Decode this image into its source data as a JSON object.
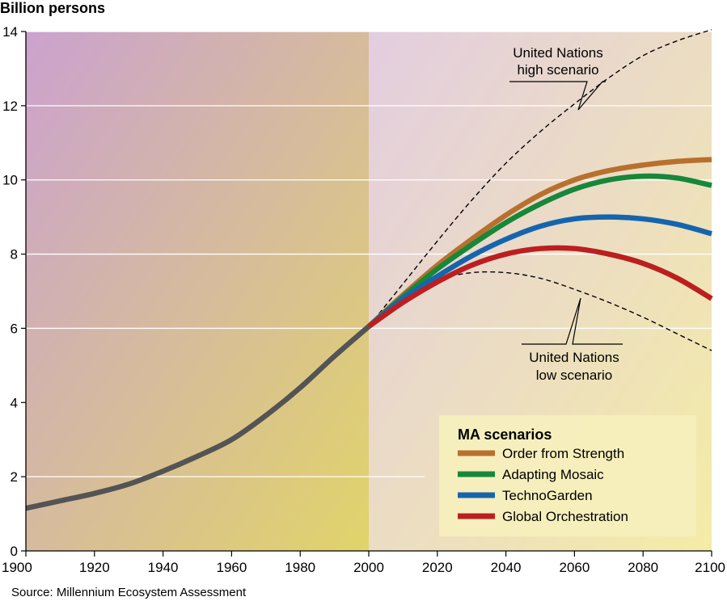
{
  "chart_data": {
    "type": "line",
    "ylabel": "Billion persons",
    "source": "Source: Millennium Ecosystem Assessment",
    "xlim": [
      1900,
      2100
    ],
    "ylim": [
      0,
      14
    ],
    "x_ticks": [
      "1900",
      "1920",
      "1940",
      "1960",
      "1980",
      "2000",
      "2020",
      "2040",
      "2060",
      "2080",
      "2100"
    ],
    "y_ticks": [
      "0",
      "2",
      "4",
      "6",
      "8",
      "10",
      "12",
      "14"
    ],
    "grid": "horizontal",
    "history": {
      "x": [
        1900,
        1910,
        1920,
        1930,
        1940,
        1950,
        1960,
        1970,
        1980,
        1990,
        2000
      ],
      "y": [
        1.15,
        1.35,
        1.55,
        1.8,
        2.15,
        2.55,
        3.0,
        3.65,
        4.4,
        5.25,
        6.05
      ]
    },
    "series": [
      {
        "name": "Order from Strength",
        "color": "#b8702e",
        "x": [
          2000,
          2010,
          2020,
          2030,
          2040,
          2050,
          2060,
          2070,
          2080,
          2090,
          2100
        ],
        "y": [
          6.05,
          6.9,
          7.7,
          8.4,
          9.05,
          9.6,
          10.0,
          10.25,
          10.4,
          10.5,
          10.55
        ]
      },
      {
        "name": "Adapting Mosaic",
        "color": "#17873a",
        "x": [
          2000,
          2010,
          2020,
          2030,
          2040,
          2050,
          2060,
          2070,
          2080,
          2090,
          2100
        ],
        "y": [
          6.05,
          6.85,
          7.6,
          8.25,
          8.85,
          9.35,
          9.75,
          10.0,
          10.1,
          10.05,
          9.85
        ]
      },
      {
        "name": "TechnoGarden",
        "color": "#1565ad",
        "x": [
          2000,
          2010,
          2020,
          2030,
          2040,
          2050,
          2060,
          2070,
          2080,
          2090,
          2100
        ],
        "y": [
          6.05,
          6.8,
          7.4,
          7.95,
          8.4,
          8.75,
          8.95,
          9.0,
          8.95,
          8.8,
          8.55
        ]
      },
      {
        "name": "Global Orchestration",
        "color": "#bb1f1f",
        "x": [
          2000,
          2010,
          2020,
          2030,
          2040,
          2050,
          2060,
          2070,
          2080,
          2090,
          2100
        ],
        "y": [
          6.05,
          6.7,
          7.25,
          7.7,
          8.0,
          8.15,
          8.15,
          8.0,
          7.75,
          7.35,
          6.8
        ]
      }
    ],
    "un_high": {
      "x": [
        2000,
        2010,
        2020,
        2030,
        2040,
        2050,
        2060,
        2070,
        2080,
        2090,
        2100
      ],
      "y": [
        6.05,
        7.2,
        8.35,
        9.45,
        10.45,
        11.3,
        12.05,
        12.75,
        13.35,
        13.75,
        14.05
      ]
    },
    "un_low": {
      "x": [
        2000,
        2010,
        2020,
        2030,
        2040,
        2050,
        2060,
        2070,
        2080,
        2090,
        2100
      ],
      "y": [
        6.05,
        6.85,
        7.3,
        7.5,
        7.5,
        7.35,
        7.05,
        6.7,
        6.3,
        5.85,
        5.4
      ]
    },
    "annotations": {
      "un_high": [
        "United Nations",
        "high scenario"
      ],
      "un_low": [
        "United Nations",
        "low scenario"
      ]
    },
    "legend": {
      "title": "MA scenarios",
      "position": "bottom-right"
    },
    "colors": {
      "history_line": "#545454",
      "historical_bg": [
        "#cba2cf",
        "#e1d46a"
      ],
      "projection_bg": [
        "#e3cde0",
        "#f4eca6"
      ]
    }
  }
}
